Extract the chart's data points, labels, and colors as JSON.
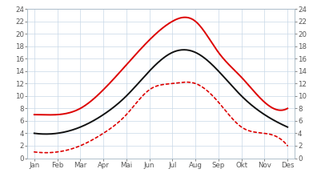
{
  "months": [
    "Jan",
    "Feb",
    "Mar",
    "Apr",
    "Mai",
    "Jun",
    "Jul",
    "Aug",
    "Sep",
    "Okt",
    "Nov",
    "Des"
  ],
  "red_solid": [
    7,
    7,
    8,
    11,
    15,
    19,
    22,
    22,
    17,
    13,
    9,
    8
  ],
  "black_solid": [
    4,
    4,
    5,
    7,
    10,
    14,
    17,
    17,
    14,
    10,
    7,
    5
  ],
  "red_dotted": [
    1,
    1,
    2,
    4,
    7,
    11,
    12,
    12,
    9,
    5,
    4,
    2
  ],
  "ylim": [
    0,
    24
  ],
  "yticks": [
    0,
    2,
    4,
    6,
    8,
    10,
    12,
    14,
    16,
    18,
    20,
    22,
    24
  ],
  "top_bar_color": "#6ecff6",
  "grid_color": "#c8d8e8",
  "bg_color": "#ffffff",
  "red_color": "#dd0000",
  "black_color": "#111111",
  "tick_color": "#555555",
  "spine_color": "#aabbc8"
}
